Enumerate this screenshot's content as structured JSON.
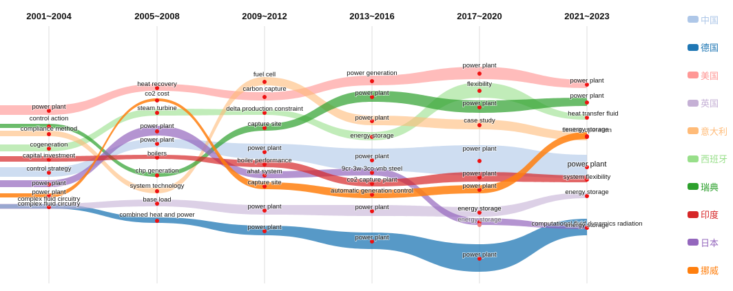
{
  "chart_data": {
    "type": "sankey-streamgraph",
    "title": "",
    "periods": [
      "2001~2004",
      "2005~2008",
      "2009~2012",
      "2013~2016",
      "2017~2020",
      "2021~2023"
    ],
    "legend": [
      {
        "name": "中国",
        "color": "#aec7e8"
      },
      {
        "name": "德国",
        "color": "#1f77b4"
      },
      {
        "name": "美国",
        "color": "#ff9896"
      },
      {
        "name": "英国",
        "color": "#c5b0d5"
      },
      {
        "name": "意大利",
        "color": "#ffbb78"
      },
      {
        "name": "西班牙",
        "color": "#98df8a"
      },
      {
        "name": "瑞典",
        "color": "#2ca02c"
      },
      {
        "name": "印度",
        "color": "#d62728"
      },
      {
        "name": "日本",
        "color": "#9467bd"
      },
      {
        "name": "挪威",
        "color": "#ff7f0e"
      }
    ],
    "series": [
      {
        "country": "美国",
        "keywords": [
          "power plant",
          "heat recovery",
          "carbon capture",
          "power generation",
          "power plant",
          "power plant"
        ]
      },
      {
        "country": "瑞典",
        "keywords": [
          "control action",
          "chp generation",
          "capture site",
          "power plant",
          "power plant",
          "power plant"
        ]
      },
      {
        "country": "西班牙",
        "keywords": [
          "cogeneration",
          "steam turbine",
          "delta production constraint",
          "energy storage",
          "flexibility",
          "heat transfer fluid"
        ]
      },
      {
        "country": "意大利",
        "keywords": [
          "compliance method",
          "system technology",
          "fuel cell",
          "power plant",
          "case study",
          "flexible operation"
        ]
      },
      {
        "country": "中国",
        "keywords": [
          "control strategy",
          "power plant",
          "power plant",
          "power plant",
          "power plant",
          "power plant"
        ]
      },
      {
        "country": "印度",
        "keywords": [
          "capital investment",
          "boilers",
          "boiler performance",
          "co2 capture plant",
          "power plant",
          "system flexibility"
        ]
      },
      {
        "country": "日本",
        "keywords": [
          "power plant",
          "power plant",
          "ahat system",
          "9cr-3w-3co-vnb steel",
          "energy storage",
          "computational fluid dynamics radiation"
        ]
      },
      {
        "country": "挪威",
        "keywords": [
          "power plant",
          "co2 cost",
          "capture site",
          "automatic generation control",
          "power plant",
          "energy storage"
        ]
      },
      {
        "country": "英国",
        "keywords": [
          "complex fluid circuitry",
          "base load",
          "power plant",
          "power plant",
          "energy storage",
          "energy storage"
        ]
      },
      {
        "country": "德国",
        "keywords": [
          "complex fluid circuitry",
          "combined heat and power",
          "power plant",
          "power plant",
          "power plant",
          "energy storage"
        ]
      }
    ],
    "extra_labels": [
      "energy storage"
    ]
  }
}
